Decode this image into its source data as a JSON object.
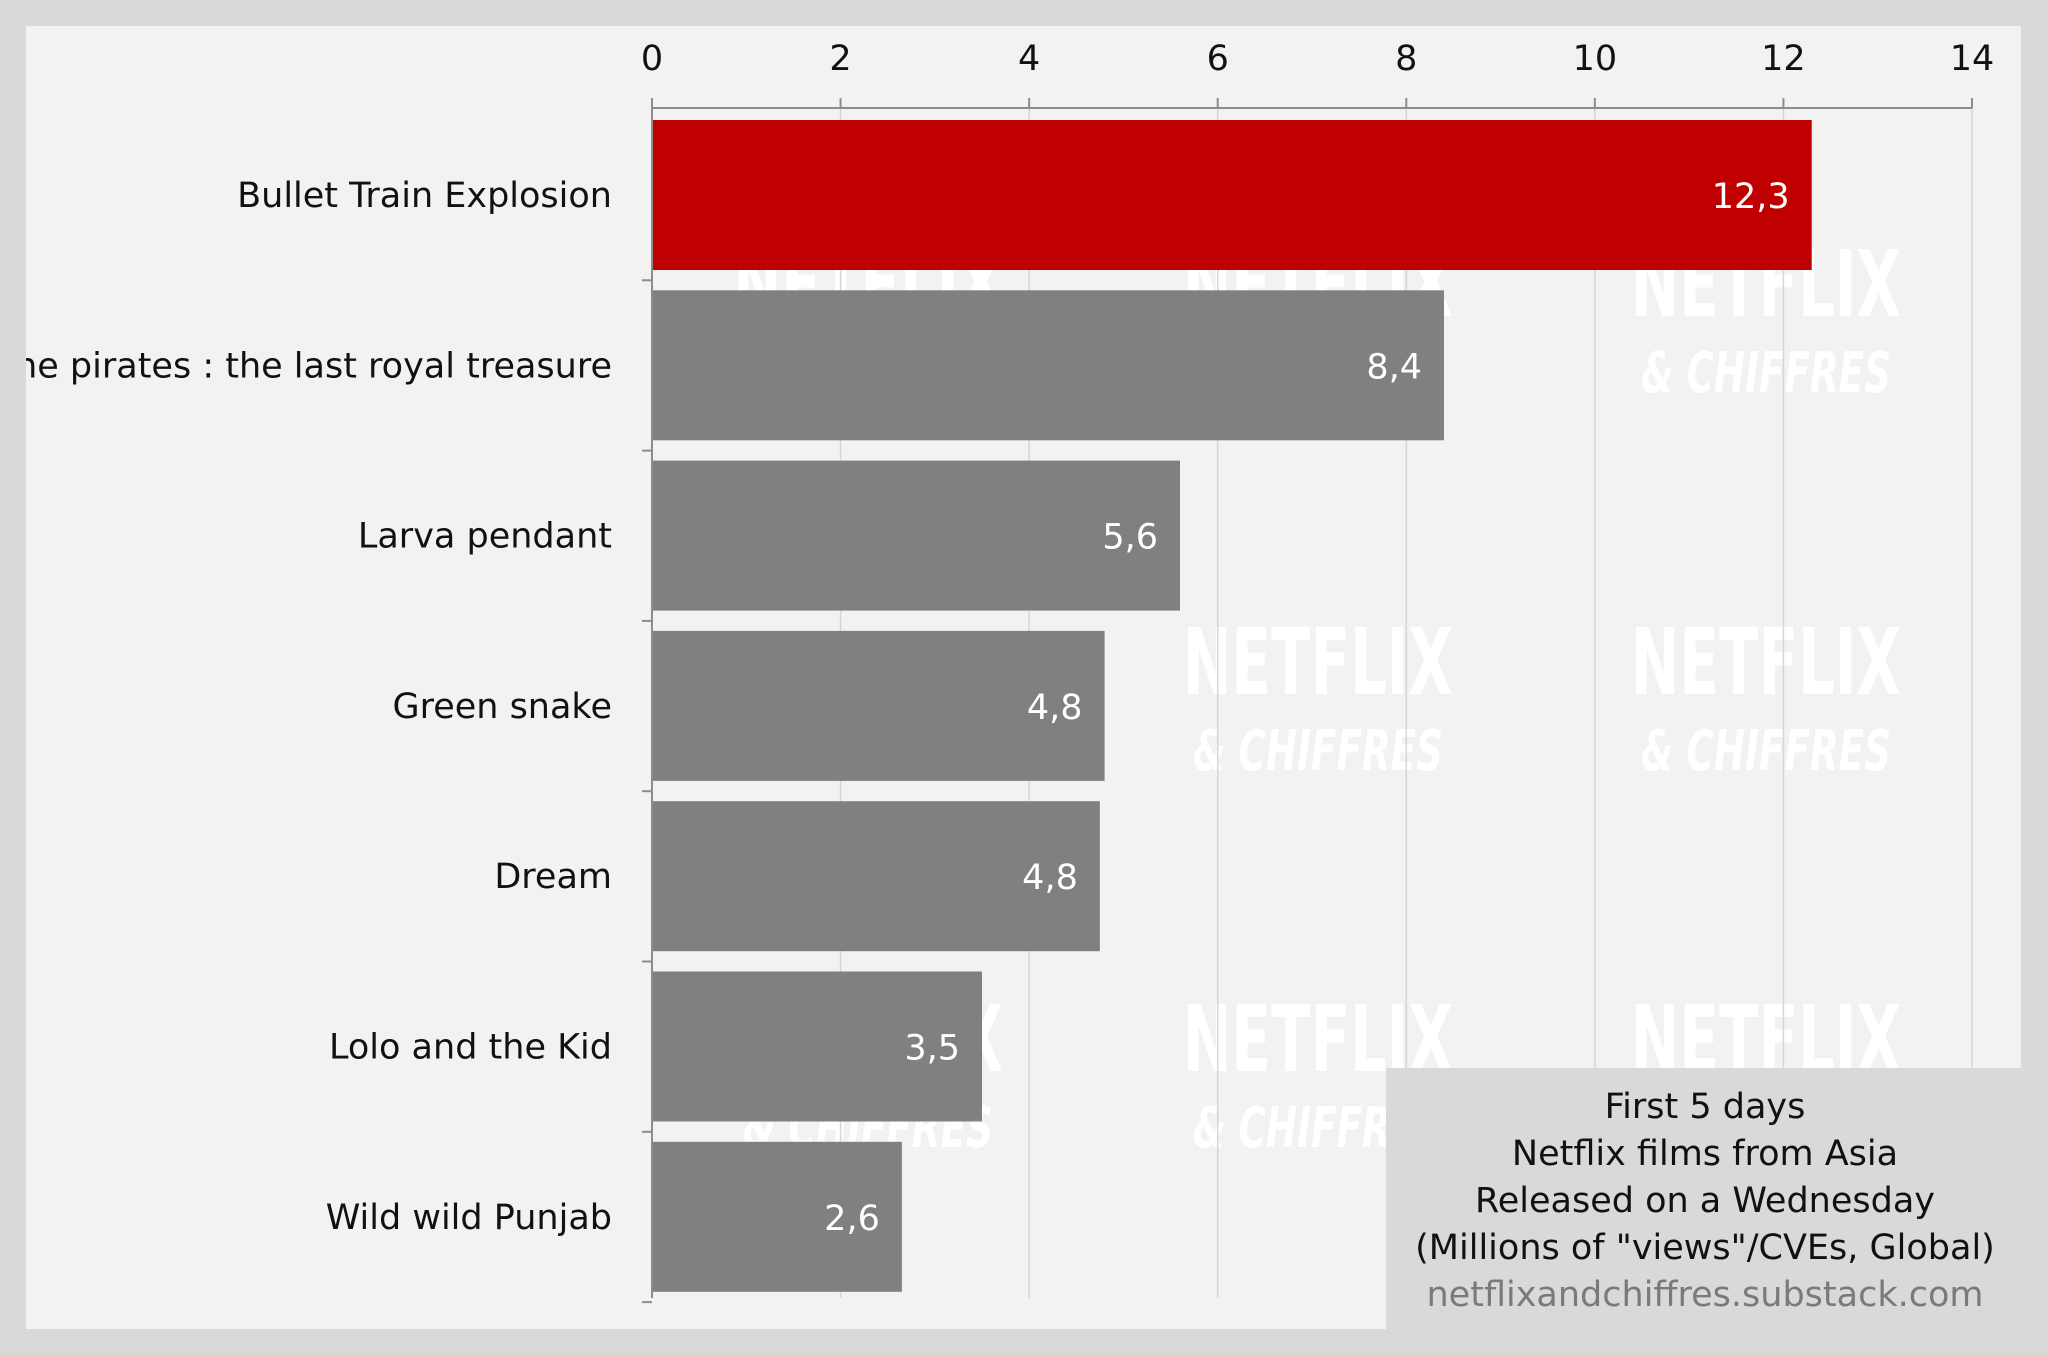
{
  "chart_data": {
    "type": "bar",
    "orientation": "horizontal",
    "categories": [
      "Bullet Train Explosion",
      "The pirates : the last royal treasure",
      "Larva pendant",
      "Green snake",
      "Dream",
      "Lolo and the Kid",
      "Wild wild Punjab"
    ],
    "values": [
      12.3,
      8.4,
      5.6,
      4.8,
      4.75,
      3.5,
      2.65
    ],
    "value_labels": [
      "12,3",
      "8,4",
      "5,6",
      "4,8",
      "4,8",
      "3,5",
      "2,6"
    ],
    "xlim": [
      0,
      14
    ],
    "x_ticks": [
      0,
      2,
      4,
      6,
      8,
      10,
      12,
      14
    ],
    "x_axis_position": "top",
    "grid": true,
    "highlight_index": 0,
    "colors": {
      "highlight": "#c00000",
      "default": "#808080",
      "grid": "#d6d6d6",
      "axis": "#8c8c8c",
      "background": "#f2f2f2",
      "frame": "#d9d9d9"
    }
  },
  "note": {
    "line1": "First 5 days",
    "line2": "Netflix films from Asia",
    "line3": "Released on a Wednesday",
    "line4": "(Millions of \"views\"/CVEs, Global)",
    "source": "netflixandchiffres.substack.com"
  },
  "watermark": {
    "brand": "NETFLIX",
    "sub": "& CHIFFRES"
  }
}
